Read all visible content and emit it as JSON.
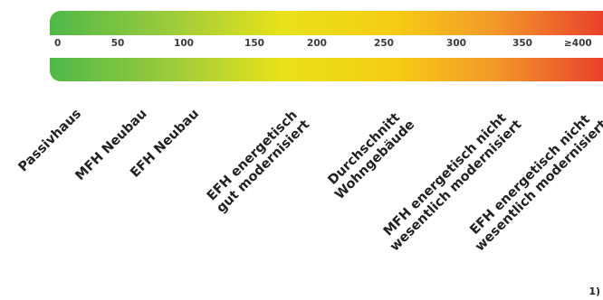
{
  "scale": {
    "ticks": [
      "0",
      "50",
      "100",
      "150",
      "200",
      "250",
      "300",
      "350",
      "≥400"
    ]
  },
  "categories": [
    {
      "lines": [
        "Passivhaus"
      ]
    },
    {
      "lines": [
        "MFH Neubau"
      ]
    },
    {
      "lines": [
        "EFH Neubau"
      ]
    },
    {
      "lines": [
        "EFH energetisch",
        "gut modernisiert"
      ]
    },
    {
      "lines": [
        "Durchschnitt",
        "Wohngebäude"
      ]
    },
    {
      "lines": [
        "MFH energetisch nicht",
        "wesentlich modernisiert"
      ]
    },
    {
      "lines": [
        "EFH energetisch nicht",
        "wesentlich modernisiert"
      ]
    }
  ],
  "footnote": "1)",
  "colors": {
    "green": "#4fb848",
    "yellow": "#f6cd14",
    "red": "#e8412b"
  }
}
